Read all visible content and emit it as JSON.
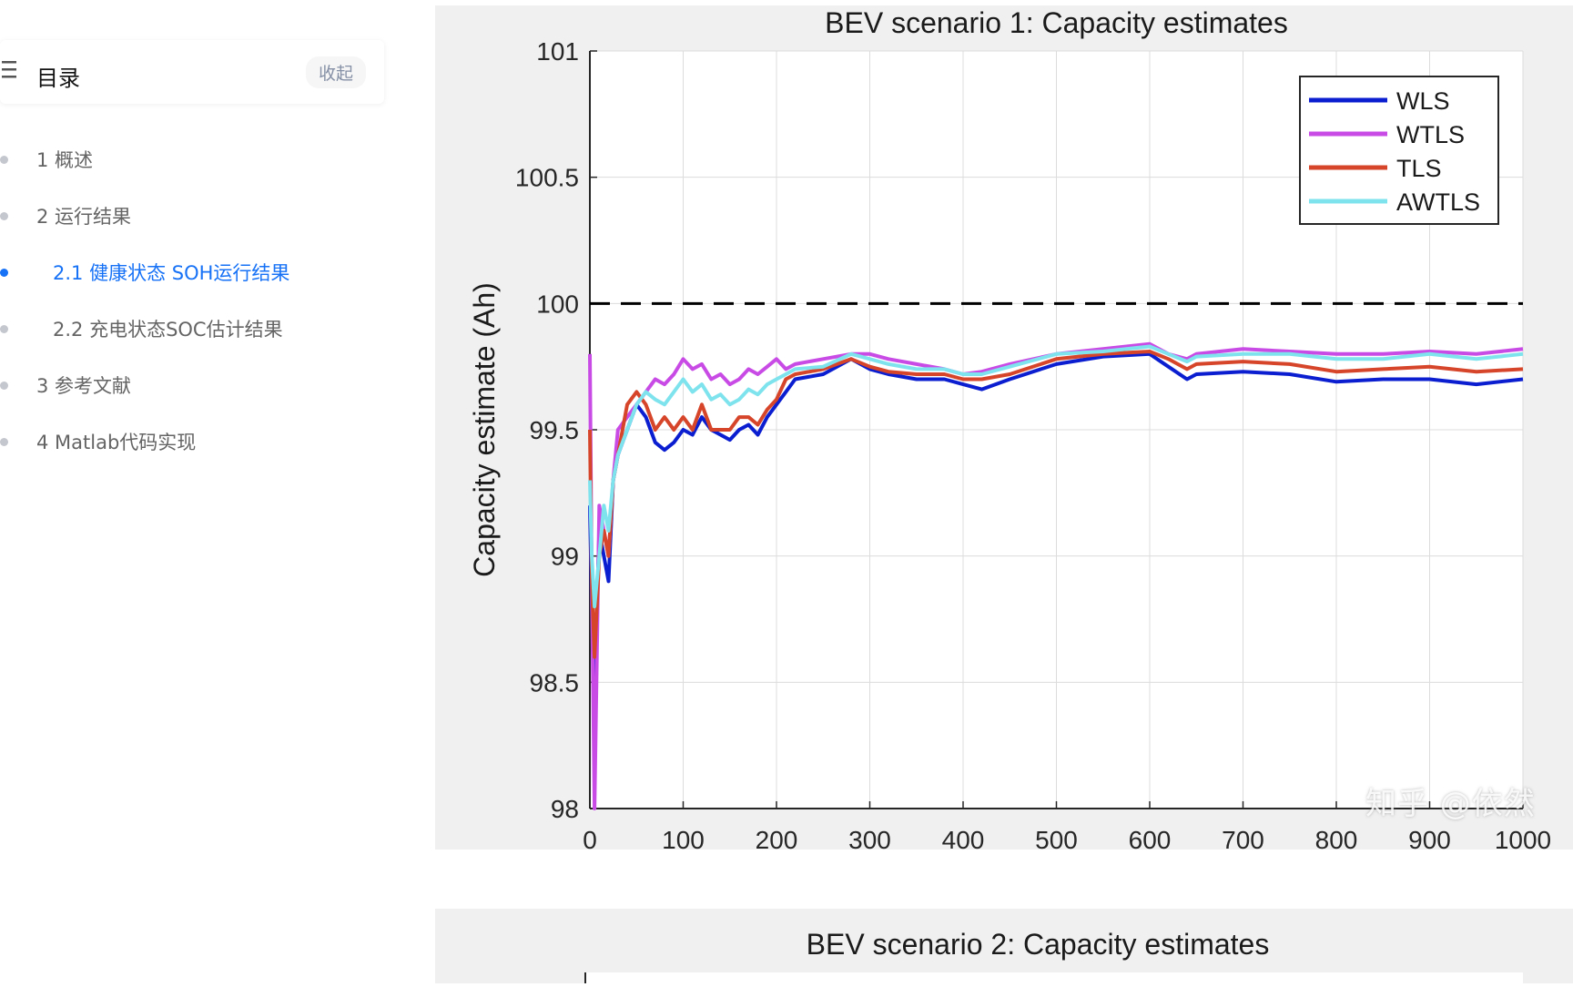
{
  "toc": {
    "title": "目录",
    "collapse_label": "收起",
    "items": [
      {
        "label": "1 概述",
        "level": 1,
        "active": false
      },
      {
        "label": "2 运行结果",
        "level": 1,
        "active": false
      },
      {
        "label": "2.1 健康状态 SOH运行结果",
        "level": 2,
        "active": true
      },
      {
        "label": "2.2 充电状态SOC估计结果",
        "level": 2,
        "active": false
      },
      {
        "label": "3 参考文献",
        "level": 1,
        "active": false
      },
      {
        "label": "4 Matlab代码实现",
        "level": 1,
        "active": false
      }
    ],
    "accent_color": "#1772f6"
  },
  "watermark": "知乎 @依然",
  "chart_data": [
    {
      "type": "line",
      "title": "BEV scenario 1: Capacity estimates",
      "xlabel": "",
      "ylabel": "Capacity estimate (Ah)",
      "xlim": [
        0,
        1000
      ],
      "ylim": [
        98,
        101
      ],
      "xticks": [
        0,
        100,
        200,
        300,
        400,
        500,
        600,
        700,
        800,
        900,
        1000
      ],
      "yticks": [
        98,
        98.5,
        99,
        99.5,
        100,
        100.5,
        101
      ],
      "grid": true,
      "legend": "top-right",
      "reference_line": {
        "y": 100,
        "style": "dashed",
        "color": "#000000"
      },
      "x": [
        0,
        2,
        5,
        10,
        15,
        20,
        25,
        30,
        40,
        50,
        60,
        70,
        80,
        90,
        100,
        110,
        120,
        130,
        140,
        150,
        160,
        170,
        180,
        190,
        200,
        210,
        220,
        250,
        280,
        300,
        320,
        350,
        380,
        400,
        420,
        450,
        500,
        550,
        600,
        620,
        640,
        650,
        700,
        750,
        800,
        850,
        900,
        950,
        1000
      ],
      "series": [
        {
          "name": "WLS",
          "color": "#0c1fd0",
          "values": [
            99.2,
            98.8,
            98.5,
            99.1,
            99.0,
            98.9,
            99.3,
            99.4,
            99.5,
            99.6,
            99.55,
            99.45,
            99.42,
            99.45,
            99.5,
            99.48,
            99.55,
            99.5,
            99.48,
            99.46,
            99.5,
            99.52,
            99.48,
            99.55,
            99.6,
            99.65,
            99.7,
            99.72,
            99.78,
            99.74,
            99.72,
            99.7,
            99.7,
            99.68,
            99.66,
            99.7,
            99.76,
            99.79,
            99.8,
            99.75,
            99.7,
            99.72,
            99.73,
            99.72,
            99.69,
            99.7,
            99.7,
            99.68,
            99.7
          ]
        },
        {
          "name": "WTLS",
          "color": "#c94be6",
          "values": [
            99.8,
            98.9,
            98.0,
            99.2,
            99.1,
            99.0,
            99.3,
            99.5,
            99.55,
            99.6,
            99.65,
            99.7,
            99.68,
            99.72,
            99.78,
            99.74,
            99.76,
            99.7,
            99.72,
            99.68,
            99.7,
            99.74,
            99.72,
            99.75,
            99.78,
            99.74,
            99.76,
            99.78,
            99.8,
            99.8,
            99.78,
            99.76,
            99.74,
            99.72,
            99.73,
            99.76,
            99.8,
            99.82,
            99.84,
            99.8,
            99.78,
            99.8,
            99.82,
            99.81,
            99.8,
            99.8,
            99.81,
            99.8,
            99.82
          ]
        },
        {
          "name": "TLS",
          "color": "#d6452a",
          "values": [
            99.5,
            98.9,
            98.6,
            99.0,
            99.1,
            99.0,
            99.3,
            99.4,
            99.6,
            99.65,
            99.6,
            99.5,
            99.55,
            99.5,
            99.55,
            99.5,
            99.6,
            99.5,
            99.5,
            99.5,
            99.55,
            99.55,
            99.52,
            99.58,
            99.62,
            99.7,
            99.72,
            99.74,
            99.78,
            99.75,
            99.73,
            99.72,
            99.72,
            99.7,
            99.7,
            99.72,
            99.78,
            99.8,
            99.81,
            99.78,
            99.74,
            99.76,
            99.77,
            99.76,
            99.73,
            99.74,
            99.75,
            99.73,
            99.74
          ]
        },
        {
          "name": "AWTLS",
          "color": "#7fe3ee",
          "values": [
            99.3,
            99.0,
            98.8,
            99.0,
            99.2,
            99.1,
            99.3,
            99.4,
            99.5,
            99.6,
            99.65,
            99.62,
            99.6,
            99.65,
            99.7,
            99.65,
            99.68,
            99.62,
            99.64,
            99.6,
            99.62,
            99.66,
            99.64,
            99.68,
            99.7,
            99.72,
            99.74,
            99.75,
            99.8,
            99.78,
            99.76,
            99.74,
            99.74,
            99.72,
            99.72,
            99.75,
            99.8,
            99.81,
            99.83,
            99.8,
            99.77,
            99.79,
            99.8,
            99.8,
            99.78,
            99.78,
            99.8,
            99.78,
            99.8
          ]
        }
      ]
    },
    {
      "type": "line",
      "title": "BEV scenario 2: Capacity estimates"
    }
  ]
}
